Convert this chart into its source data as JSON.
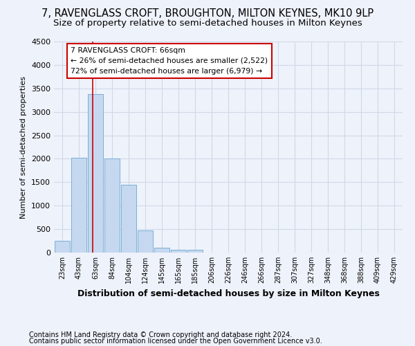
{
  "title": "7, RAVENGLASS CROFT, BROUGHTON, MILTON KEYNES, MK10 9LP",
  "subtitle": "Size of property relative to semi-detached houses in Milton Keynes",
  "xlabel": "Distribution of semi-detached houses by size in Milton Keynes",
  "ylabel": "Number of semi-detached properties",
  "footnote1": "Contains HM Land Registry data © Crown copyright and database right 2024.",
  "footnote2": "Contains public sector information licensed under the Open Government Licence v3.0.",
  "categories": [
    "23sqm",
    "43sqm",
    "63sqm",
    "84sqm",
    "104sqm",
    "124sqm",
    "145sqm",
    "165sqm",
    "185sqm",
    "206sqm",
    "226sqm",
    "246sqm",
    "266sqm",
    "287sqm",
    "307sqm",
    "327sqm",
    "348sqm",
    "368sqm",
    "388sqm",
    "409sqm",
    "429sqm"
  ],
  "values": [
    250,
    2020,
    3380,
    2000,
    1450,
    470,
    100,
    60,
    60,
    0,
    0,
    0,
    0,
    0,
    0,
    0,
    0,
    0,
    0,
    0,
    0
  ],
  "bar_color": "#c5d8f0",
  "bar_edge_color": "#7aafd4",
  "property_line_x": 1.82,
  "property_line_color": "#cc0000",
  "ylim": [
    0,
    4500
  ],
  "yticks": [
    0,
    500,
    1000,
    1500,
    2000,
    2500,
    3000,
    3500,
    4000,
    4500
  ],
  "annotation_text": "7 RAVENGLASS CROFT: 66sqm\n← 26% of semi-detached houses are smaller (2,522)\n72% of semi-detached houses are larger (6,979) →",
  "annotation_box_color": "#ffffff",
  "annotation_box_edge_color": "#cc0000",
  "grid_color": "#d0d8e8",
  "background_color": "#eef2fa",
  "title_fontsize": 10.5,
  "subtitle_fontsize": 9.5,
  "footnote_fontsize": 7.0
}
